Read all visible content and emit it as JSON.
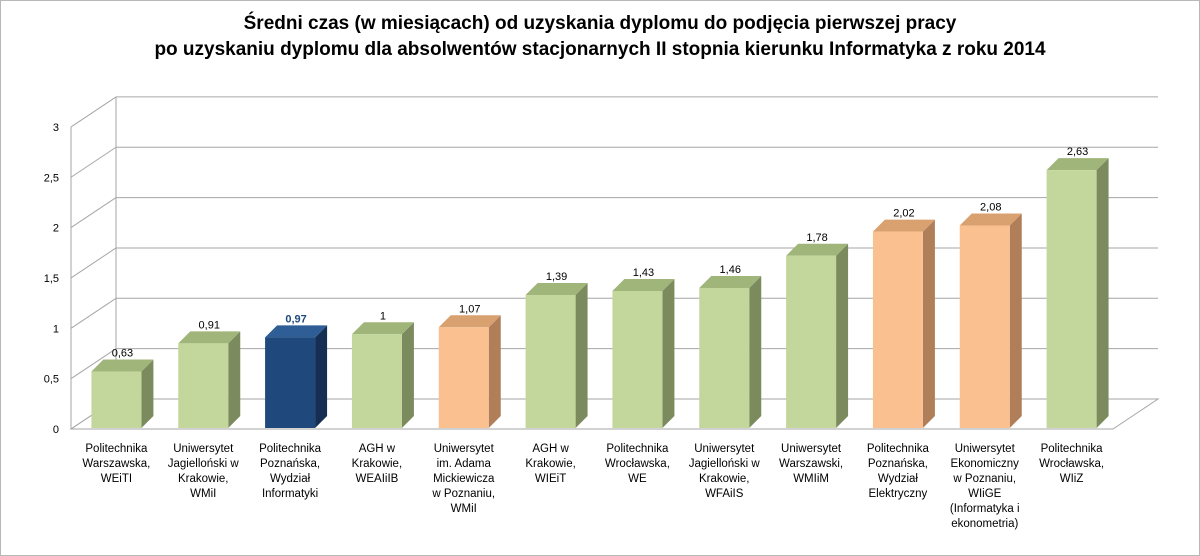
{
  "chart_data": {
    "type": "bar",
    "title_line1": "Średni czas (w miesiącach) od uzyskania dyplomu do podjęcia pierwszej pracy",
    "title_line2": "po uzyskaniu dyplomu dla absolwentów stacjonarnych II stopnia kierunku Informatyka z roku 2014",
    "xlabel": "",
    "ylabel": "",
    "ylim": [
      0,
      3
    ],
    "yticks": [
      "0",
      "0,5",
      "1",
      "1,5",
      "2",
      "2,5",
      "3"
    ],
    "grid": true,
    "categories": [
      "Politechnika Warszawska, WEiTI",
      "Uniwersytet Jagielloński w Krakowie, WMiI",
      "Politechnika Poznańska, Wydział Informatyki",
      "AGH w Krakowie, WEAIiIB",
      "Uniwersytet im. Adama Mickiewicza w Poznaniu, WMiI",
      "AGH w Krakowie, WIEiT",
      "Politechnika Wrocławska, WE",
      "Uniwersytet Jagielloński w Krakowie, WFAiIS",
      "Uniwersytet Warszawski, WMIiM",
      "Politechnika Poznańska, Wydział Elektryczny",
      "Uniwersytet Ekonomiczny w Poznaniu, WIiGE (Informatyka i ekonometria)",
      "Politechnika Wrocławska, WIiZ"
    ],
    "category_lines": [
      [
        "Politechnika",
        "Warszawska,",
        "WEiTI"
      ],
      [
        "Uniwersytet",
        "Jagielloński w",
        "Krakowie,",
        "WMiI"
      ],
      [
        "Politechnika",
        "Poznańska,",
        "Wydział",
        "Informatyki"
      ],
      [
        "AGH w",
        "Krakowie,",
        "WEAIiIB"
      ],
      [
        "Uniwersytet",
        "im. Adama",
        "Mickiewicza",
        "w Poznaniu,",
        "WMiI"
      ],
      [
        "AGH w",
        "Krakowie,",
        "WIEiT"
      ],
      [
        "Politechnika",
        "Wrocławska,",
        "WE"
      ],
      [
        "Uniwersytet",
        "Jagielloński w",
        "Krakowie,",
        "WFAiIS"
      ],
      [
        "Uniwersytet",
        "Warszawski,",
        "WMIiM"
      ],
      [
        "Politechnika",
        "Poznańska,",
        "Wydział",
        "Elektryczny"
      ],
      [
        "Uniwersytet",
        "Ekonomiczny",
        "w Poznaniu,",
        "WIiGE",
        "(Informatyka i",
        "ekonometria)"
      ],
      [
        "Politechnika",
        "Wrocławska,",
        "WIiZ"
      ]
    ],
    "values": [
      0.63,
      0.91,
      0.97,
      1,
      1.07,
      1.39,
      1.43,
      1.46,
      1.78,
      2.02,
      2.08,
      2.63
    ],
    "value_labels": [
      "0,63",
      "0,91",
      "0,97",
      "1",
      "1,07",
      "1,39",
      "1,43",
      "1,46",
      "1,78",
      "2,02",
      "2,08",
      "2,63"
    ],
    "bar_groups": [
      "green",
      "green",
      "highlight",
      "green",
      "orange",
      "green",
      "green",
      "green",
      "green",
      "orange",
      "orange",
      "green"
    ],
    "colors": {
      "green_front": "#c3d69b",
      "green_side": "#7b8b5e",
      "green_top": "#a0b57a",
      "orange_front": "#fac090",
      "orange_side": "#b07f5a",
      "orange_top": "#d9a070",
      "highlight_front": "#1f497d",
      "highlight_side": "#142f52",
      "highlight_top": "#2f5d96",
      "highlight_label": "#1f497d",
      "grid": "#a6a6a6"
    }
  }
}
